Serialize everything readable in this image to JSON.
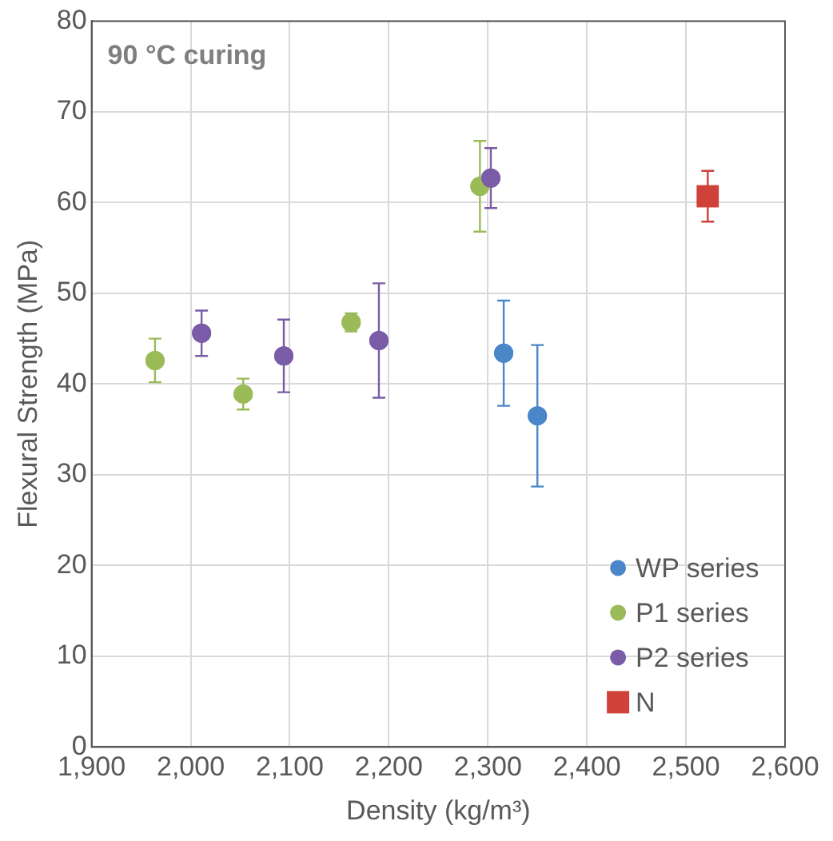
{
  "chart_data": {
    "type": "scatter",
    "title": "90 °C curing",
    "xlabel": "Density (kg/m³)",
    "ylabel": "Flexural Strength (MPa)",
    "xlim": [
      1900,
      2600
    ],
    "xticks": [
      {
        "value": 1900,
        "label": "1,900"
      },
      {
        "value": 2000,
        "label": "2,000"
      },
      {
        "value": 2100,
        "label": "2,100"
      },
      {
        "value": 2200,
        "label": "2,200"
      },
      {
        "value": 2300,
        "label": "2,300"
      },
      {
        "value": 2400,
        "label": "2,400"
      },
      {
        "value": 2500,
        "label": "2,500"
      },
      {
        "value": 2600,
        "label": "2,600"
      }
    ],
    "ylim": [
      0,
      80
    ],
    "yticks": [
      0,
      10,
      20,
      30,
      40,
      50,
      60,
      70,
      80
    ],
    "grid": true,
    "legend": "bottom right",
    "marker": "circle",
    "series": [
      {
        "name": "WP series",
        "color": "#4a86c8",
        "x": [
          2316,
          2350
        ],
        "values": [
          43.4,
          36.5
        ],
        "errors": [
          5.8,
          7.8
        ]
      },
      {
        "name": "P1 series",
        "color": "#9bbb59",
        "x": [
          1964,
          2053,
          2162,
          2292
        ],
        "values": [
          42.6,
          38.9,
          46.8,
          61.8
        ],
        "errors": [
          2.4,
          1.7,
          1.0,
          5.0
        ]
      },
      {
        "name": "P2 series",
        "color": "#7a5ca8",
        "x": [
          2011,
          2094,
          2190,
          2303
        ],
        "values": [
          45.6,
          43.1,
          44.8,
          62.7
        ],
        "errors": [
          2.5,
          4.0,
          6.3,
          3.3
        ]
      },
      {
        "name": "N",
        "color": "#d0413a",
        "marker": "square",
        "x": [
          2522
        ],
        "values": [
          60.7
        ],
        "errors": [
          2.8
        ]
      }
    ]
  }
}
